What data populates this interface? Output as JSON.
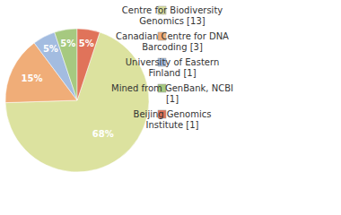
{
  "chart_data": {
    "type": "pie",
    "categories": [
      "Centre for Biodiversity Genomics [13]",
      "Canadian Centre for DNA Barcoding [3]",
      "University of Eastern Finland [1]",
      "Mined from GenBank, NCBI [1]",
      "Beijing Genomics Institute [1]"
    ],
    "values": [
      68,
      15,
      5,
      5,
      5
    ],
    "value_labels": [
      "68%",
      "15%",
      "5%",
      "5%",
      "5%"
    ],
    "colors": [
      "#dce29f",
      "#f0ad78",
      "#a3bce0",
      "#a6c980",
      "#e0735a"
    ],
    "data_labels": true,
    "legend": "right"
  }
}
